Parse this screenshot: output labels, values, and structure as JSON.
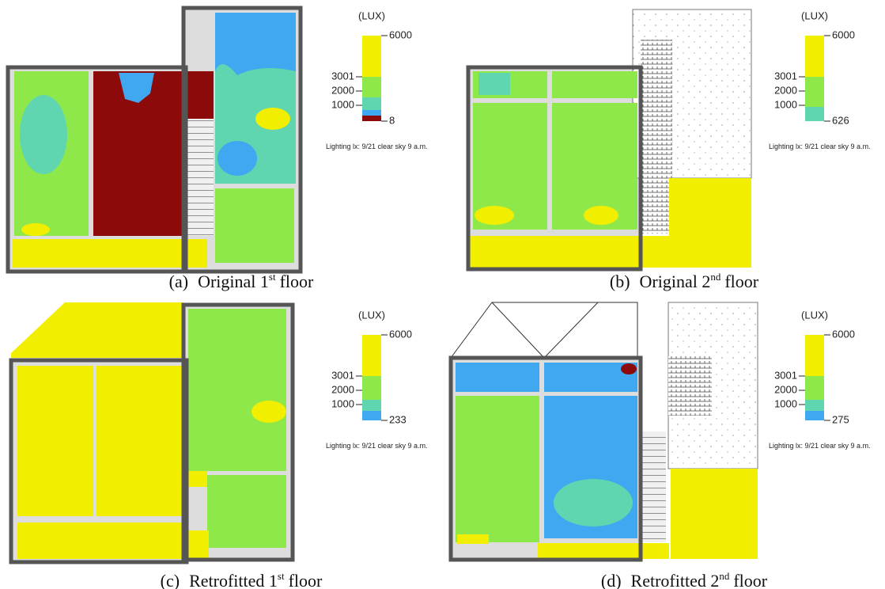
{
  "panels": [
    {
      "caption": {
        "label": "(a)",
        "text": "Original 1",
        "sup": "st",
        "rest": "floor"
      },
      "legend": {
        "unit": "(LUX)",
        "max": 6000,
        "ticks": [
          3001,
          2000,
          1000
        ],
        "min": 8,
        "note": "Lighting lx: 9/21 clear sky 9 a.m."
      }
    },
    {
      "caption": {
        "label": "(b)",
        "text": "Original 2",
        "sup": "nd",
        "rest": "floor"
      },
      "legend": {
        "unit": "(LUX)",
        "max": 6000,
        "ticks": [
          3001,
          2000,
          1000
        ],
        "min": 626,
        "note": "Lighting lx: 9/21 clear sky 9 a.m."
      }
    },
    {
      "caption": {
        "label": "(c)",
        "text": "Retrofitted 1",
        "sup": "st",
        "rest": "floor"
      },
      "legend": {
        "unit": "(LUX)",
        "max": 6000,
        "ticks": [
          3001,
          2000,
          1000
        ],
        "min": 233,
        "note": "Lighting lx: 9/21 clear sky 9 a.m."
      }
    },
    {
      "caption": {
        "label": "(d)",
        "text": "Retrofitted 2",
        "sup": "nd",
        "rest": "floor"
      },
      "legend": {
        "unit": "(LUX)",
        "max": 6000,
        "ticks": [
          3001,
          2000,
          1000
        ],
        "min": 275,
        "note": "Lighting lx: 9/21 clear sky 9 a.m."
      }
    }
  ]
}
